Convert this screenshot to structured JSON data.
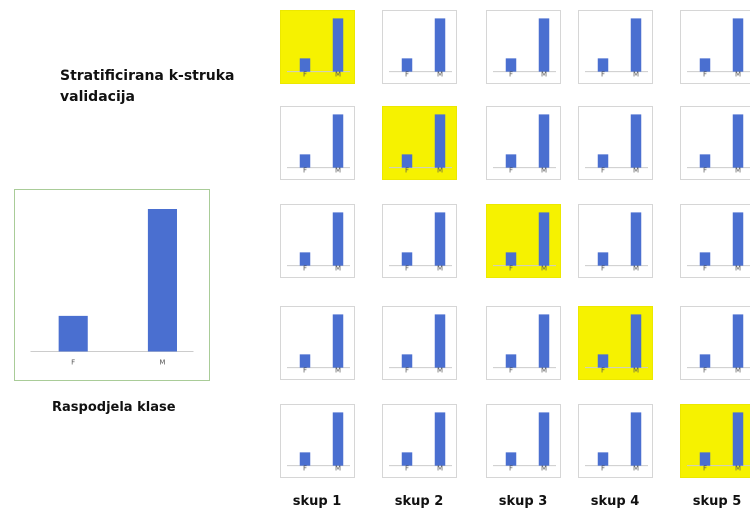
{
  "title": "Stratificirana k-struka validacija",
  "caption": "Raspodjela klase",
  "colors": {
    "bar": "#4a6fd0",
    "highlight": "#f6f200",
    "frame": "#a9cc98"
  },
  "chart_data": {
    "type": "bar",
    "categories": [
      "F",
      "M"
    ],
    "values": [
      25,
      100
    ]
  },
  "folds": [
    {
      "label": "skup 1",
      "highlight_row": 1
    },
    {
      "label": "skup 2",
      "highlight_row": 2
    },
    {
      "label": "skup 3",
      "highlight_row": 3
    },
    {
      "label": "skup 4",
      "highlight_row": 4
    },
    {
      "label": "skup 5",
      "highlight_row": 5
    }
  ]
}
